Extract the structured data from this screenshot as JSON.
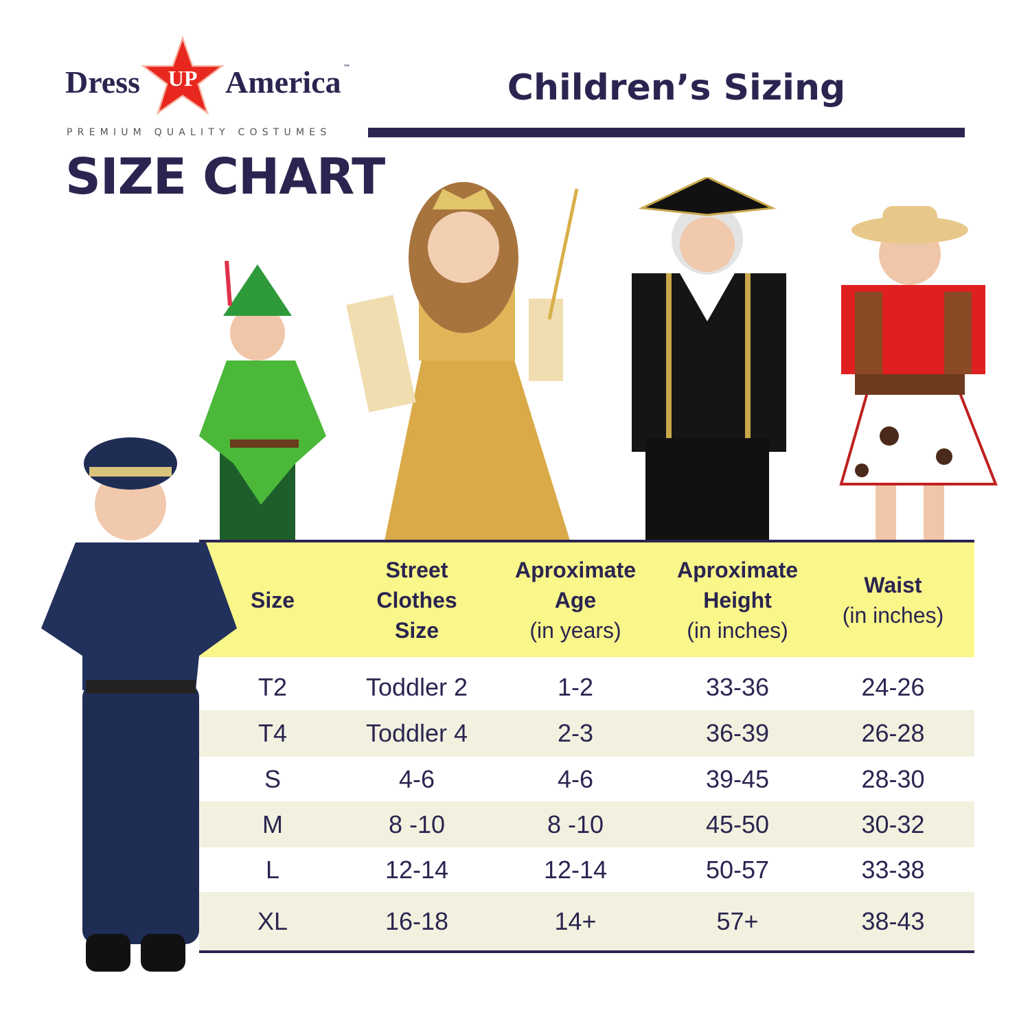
{
  "brand": {
    "logo_text": "Dress UP America",
    "logo_word_left": "Dress",
    "logo_star_text": "UP",
    "logo_word_right": "America",
    "trademark": "™",
    "tagline": "PREMIUM QUALITY COSTUMES"
  },
  "header": {
    "title": "SIZE CHART",
    "subtitle": "Children’s Sizing"
  },
  "colors": {
    "navy": "#2a2550",
    "header_yellow": "#f9f68a",
    "row_alt": "#f2f1df",
    "star_red": "#e8281e"
  },
  "photos": [
    "police-costume-child",
    "peter-pan-costume-child",
    "princess-costume-child",
    "colonial-costume-child",
    "cowgirl-costume-child"
  ],
  "table": {
    "columns": [
      {
        "bold": [
          "Size"
        ],
        "normal": ""
      },
      {
        "bold": [
          "Street",
          "Clothes",
          "Size"
        ],
        "normal": ""
      },
      {
        "bold": [
          "Aproximate",
          "Age"
        ],
        "normal": "(in years)"
      },
      {
        "bold": [
          "Aproximate",
          "Height"
        ],
        "normal": "(in inches)"
      },
      {
        "bold": [
          "Waist"
        ],
        "normal": "(in inches)"
      }
    ],
    "rows": [
      [
        "T2",
        "Toddler 2",
        "1-2",
        "33-36",
        "24-26"
      ],
      [
        "T4",
        "Toddler 4",
        "2-3",
        "36-39",
        "26-28"
      ],
      [
        "S",
        "4-6",
        "4-6",
        "39-45",
        "28-30"
      ],
      [
        "M",
        "8 -10",
        "8 -10",
        "45-50",
        "30-32"
      ],
      [
        "L",
        "12-14",
        "12-14",
        "50-57",
        "33-38"
      ],
      [
        "XL",
        "16-18",
        "14+",
        "57+",
        "38-43"
      ]
    ]
  }
}
